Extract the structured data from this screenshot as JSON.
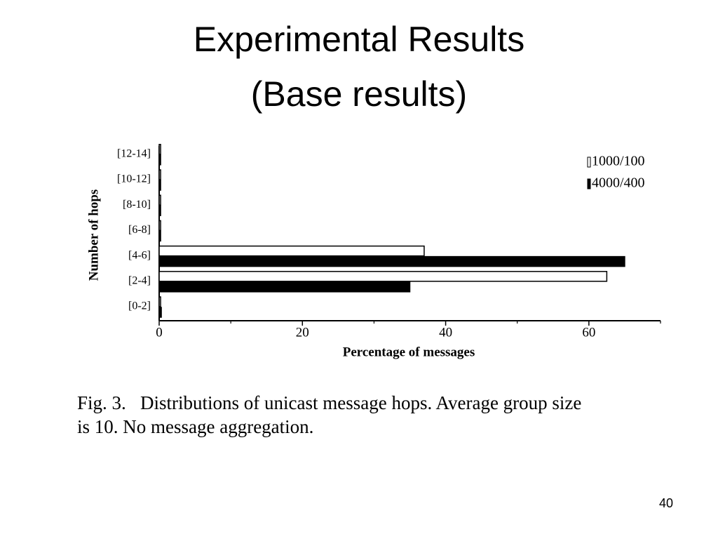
{
  "slide": {
    "title": [
      "Experimental Results",
      "(Base results)"
    ],
    "caption": [
      "Fig. 3.   Distributions of unicast message hops. Average group size",
      "is 10. No message aggregation."
    ],
    "page_number": 40
  },
  "chart_data": {
    "type": "hbar",
    "xlabel": "Percentage of messages",
    "ylabel": "Number of hops",
    "categories": [
      "[0-2]",
      "[2-4]",
      "[4-6]",
      "[6-8]",
      "[8-10]",
      "[10-12]",
      "[12-14]"
    ],
    "series": [
      {
        "name": "1000/100",
        "color": "#ffffff",
        "values": [
          0.2,
          62.5,
          37,
          0.2,
          0.2,
          0.2,
          0.2
        ]
      },
      {
        "name": "4000/400",
        "color": "#000000",
        "values": [
          0.3,
          35,
          65,
          0.2,
          0.2,
          0.2,
          0.2
        ]
      }
    ],
    "xlim": [
      0,
      70
    ],
    "xticks": [
      0,
      20,
      40,
      60
    ],
    "xminorticks": [
      10,
      30,
      50,
      70
    ],
    "legend": "upper right"
  }
}
